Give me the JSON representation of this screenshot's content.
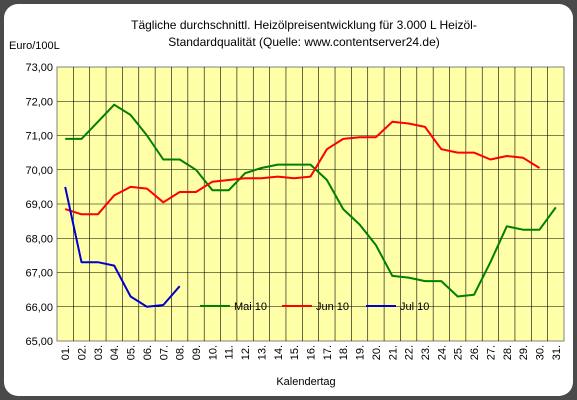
{
  "chart_data": {
    "type": "line",
    "title_lines": [
      "Tägliche durchschnittl. Heizölpreisentwicklung für 3.000 L Heizöl-",
      "Standardqualität (Quelle: www.contentserver24.de)"
    ],
    "ylabel": "Euro/100L",
    "xlabel": "Kalendertag",
    "ylim": [
      65,
      73
    ],
    "y_ticks": [
      "65,00",
      "66,00",
      "67,00",
      "68,00",
      "69,00",
      "70,00",
      "71,00",
      "72,00",
      "73,00"
    ],
    "categories": [
      "01.",
      "02.",
      "03.",
      "04.",
      "05.",
      "06.",
      "07.",
      "08.",
      "09.",
      "10.",
      "11.",
      "12.",
      "13.",
      "14.",
      "15.",
      "16.",
      "17.",
      "18.",
      "19.",
      "20.",
      "21.",
      "22.",
      "23.",
      "24.",
      "25.",
      "26.",
      "27.",
      "28.",
      "29.",
      "30.",
      "31."
    ],
    "grid": true,
    "legend_position": "bottom-right",
    "plot_background": "#ffffa8",
    "series": [
      {
        "name": "Mai 10",
        "color": "#008000",
        "values": [
          70.9,
          70.9,
          71.4,
          71.9,
          71.6,
          71.0,
          70.3,
          70.3,
          70.0,
          69.4,
          69.4,
          69.9,
          70.05,
          70.15,
          70.15,
          70.15,
          69.7,
          68.85,
          68.4,
          67.8,
          66.9,
          66.85,
          66.75,
          66.75,
          66.3,
          66.35,
          67.3,
          68.35,
          68.25,
          68.25,
          68.9
        ]
      },
      {
        "name": "Jun 10",
        "color": "#ff0000",
        "values": [
          68.85,
          68.7,
          68.7,
          69.25,
          69.5,
          69.45,
          69.05,
          69.35,
          69.35,
          69.65,
          69.7,
          69.75,
          69.75,
          69.8,
          69.75,
          69.8,
          70.6,
          70.9,
          70.95,
          70.95,
          71.4,
          71.35,
          71.25,
          70.6,
          70.5,
          70.5,
          70.3,
          70.4,
          70.35,
          70.05,
          null
        ]
      },
      {
        "name": "Jul 10",
        "color": "#0000cc",
        "values": [
          69.5,
          67.3,
          67.3,
          67.2,
          66.3,
          66.0,
          66.05,
          66.6,
          null,
          null,
          null,
          null,
          null,
          null,
          null,
          null,
          null,
          null,
          null,
          null,
          null,
          null,
          null,
          null,
          null,
          null,
          null,
          null,
          null,
          null,
          null
        ]
      }
    ]
  }
}
